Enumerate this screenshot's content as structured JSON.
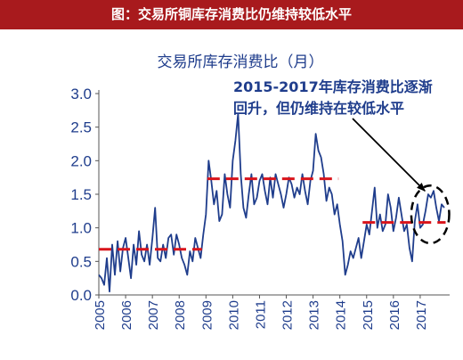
{
  "header": {
    "title": "图：交易所铜库存消费比仍维持较低水平"
  },
  "chart_data": {
    "type": "line",
    "title": "交易所库存消费比（月）",
    "xlabel": "",
    "ylabel": "",
    "ylim": [
      0,
      3
    ],
    "yticks": [
      "0.0",
      "0.5",
      "1.0",
      "1.5",
      "2.0",
      "2.5",
      "3.0"
    ],
    "xticks": [
      "2005",
      "2006",
      "2007",
      "2008",
      "2009",
      "2010",
      "2011",
      "2012",
      "2013",
      "2014",
      "2015",
      "2016",
      "2017"
    ],
    "grid": false,
    "annotation": {
      "line1": "2015-2017年库存消费比逐渐",
      "line2": "回升，但仍维持在较低水平"
    },
    "colors": {
      "line": "#1f3d8c",
      "mean": "#d9141b",
      "header": "#a81a1d",
      "annotation": "#1f3d8c"
    },
    "series": [
      {
        "x": [
          2005.0,
          2005.1,
          2005.2,
          2005.3,
          2005.4,
          2005.5,
          2005.6,
          2005.7,
          2005.8,
          2005.9,
          2006.0,
          2006.1,
          2006.2,
          2006.3,
          2006.4,
          2006.5,
          2006.6,
          2006.7,
          2006.8,
          2006.9,
          2007.0,
          2007.1,
          2007.2,
          2007.3,
          2007.4,
          2007.5,
          2007.6,
          2007.7,
          2007.8,
          2007.9,
          2008.0,
          2008.1,
          2008.2,
          2008.3,
          2008.4,
          2008.5,
          2008.6,
          2008.7,
          2008.8,
          2008.9,
          2009.0,
          2009.1,
          2009.2,
          2009.3,
          2009.4,
          2009.5,
          2009.6,
          2009.7,
          2009.8,
          2009.9,
          2010.0,
          2010.1,
          2010.2,
          2010.3,
          2010.4,
          2010.5,
          2010.6,
          2010.7,
          2010.8,
          2010.9,
          2011.0,
          2011.1,
          2011.2,
          2011.3,
          2011.4,
          2011.5,
          2011.6,
          2011.7,
          2011.8,
          2011.9,
          2012.0,
          2012.1,
          2012.2,
          2012.3,
          2012.4,
          2012.5,
          2012.6,
          2012.7,
          2012.8,
          2012.9,
          2013.0,
          2013.1,
          2013.2,
          2013.3,
          2013.4,
          2013.5,
          2013.6,
          2013.7,
          2013.8,
          2013.9,
          2014.0,
          2014.1,
          2014.2,
          2014.3,
          2014.4,
          2014.5,
          2014.6,
          2014.7,
          2014.8,
          2014.9,
          2015.0,
          2015.1,
          2015.2,
          2015.3,
          2015.4,
          2015.5,
          2015.6,
          2015.7,
          2015.8,
          2015.9,
          2016.0,
          2016.1,
          2016.2,
          2016.3,
          2016.4,
          2016.5,
          2016.6,
          2016.7,
          2016.8,
          2016.9,
          2017.0,
          2017.1,
          2017.2,
          2017.3,
          2017.4,
          2017.5,
          2017.6,
          2017.7,
          2017.8,
          2017.9
        ],
        "y": [
          0.3,
          0.25,
          0.15,
          0.55,
          0.05,
          0.75,
          0.3,
          0.8,
          0.35,
          0.7,
          0.85,
          0.55,
          0.25,
          0.75,
          0.45,
          0.95,
          0.6,
          0.5,
          0.75,
          0.45,
          0.85,
          1.3,
          0.55,
          0.5,
          0.75,
          0.55,
          0.85,
          0.9,
          0.6,
          0.9,
          0.75,
          0.55,
          0.45,
          0.3,
          0.65,
          0.5,
          0.85,
          0.7,
          0.55,
          0.9,
          1.2,
          2.0,
          1.7,
          1.35,
          1.55,
          1.1,
          1.2,
          1.8,
          1.5,
          1.3,
          2.0,
          2.3,
          2.7,
          1.8,
          1.3,
          1.15,
          1.5,
          1.8,
          1.35,
          1.45,
          1.7,
          1.8,
          1.55,
          1.35,
          1.75,
          1.45,
          1.8,
          1.65,
          1.5,
          1.3,
          1.5,
          1.75,
          1.65,
          1.45,
          1.6,
          1.5,
          1.8,
          1.55,
          1.35,
          1.7,
          1.85,
          2.4,
          2.15,
          2.05,
          1.8,
          1.4,
          1.6,
          1.5,
          1.2,
          1.35,
          1.05,
          0.8,
          0.3,
          0.45,
          0.65,
          0.55,
          0.7,
          0.85,
          0.55,
          0.8,
          1.05,
          0.9,
          1.25,
          1.6,
          1.0,
          1.2,
          0.95,
          1.05,
          1.5,
          1.3,
          0.95,
          1.15,
          1.45,
          1.2,
          0.95,
          1.05,
          0.7,
          0.5,
          1.1,
          1.35,
          1.0,
          1.05,
          1.25,
          1.5,
          1.45,
          1.55,
          1.3,
          1.1,
          1.35,
          1.3
        ]
      }
    ],
    "mean_lines": [
      {
        "x": [
          2005.0,
          2008.85
        ],
        "y": 0.68
      },
      {
        "x": [
          2009.05,
          2013.95
        ],
        "y": 1.73
      },
      {
        "x": [
          2014.85,
          2017.95
        ],
        "y": 1.08
      }
    ],
    "highlight_range": {
      "x": [
        2016.8,
        2017.95
      ],
      "y": [
        0.85,
        1.55
      ]
    }
  }
}
